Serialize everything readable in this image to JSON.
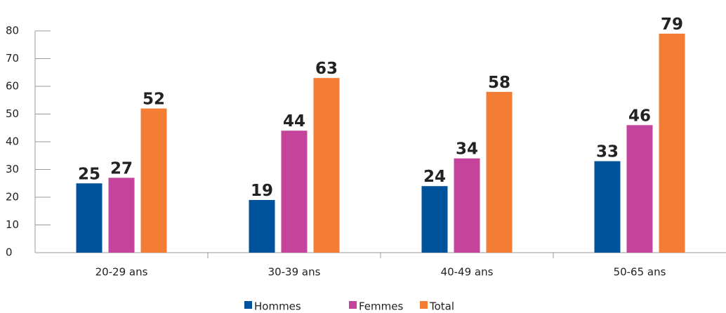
{
  "chart_data": {
    "type": "bar",
    "categories": [
      "20-29 ans",
      "30-39 ans",
      "40-49 ans",
      "50-65 ans"
    ],
    "series": [
      {
        "name": "Hommes",
        "color": "#00539b",
        "values": [
          25,
          19,
          24,
          33
        ]
      },
      {
        "name": "Femmes",
        "color": "#c5449b",
        "values": [
          27,
          44,
          34,
          46
        ]
      },
      {
        "name": "Total",
        "color": "#f47d35",
        "values": [
          52,
          63,
          58,
          79
        ]
      }
    ],
    "ylim": [
      0,
      80
    ],
    "yticks": [
      0,
      10,
      20,
      30,
      40,
      50,
      60,
      70,
      80
    ],
    "legend": "bottom"
  }
}
